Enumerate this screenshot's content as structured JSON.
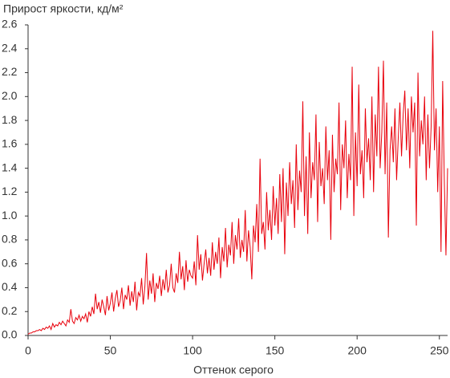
{
  "chart_data": {
    "type": "line",
    "title": "Прирост яркости, кд/м²",
    "x_label": "Оттенок серого",
    "color": "#e8000b",
    "x": [
      0,
      1,
      2,
      3,
      4,
      5,
      6,
      7,
      8,
      9,
      10,
      11,
      12,
      13,
      14,
      15,
      16,
      17,
      18,
      19,
      20,
      21,
      22,
      23,
      24,
      25,
      26,
      27,
      28,
      29,
      30,
      31,
      32,
      33,
      34,
      35,
      36,
      37,
      38,
      39,
      40,
      41,
      42,
      43,
      44,
      45,
      46,
      47,
      48,
      49,
      50,
      51,
      52,
      53,
      54,
      55,
      56,
      57,
      58,
      59,
      60,
      61,
      62,
      63,
      64,
      65,
      66,
      67,
      68,
      69,
      70,
      71,
      72,
      73,
      74,
      75,
      76,
      77,
      78,
      79,
      80,
      81,
      82,
      83,
      84,
      85,
      86,
      87,
      88,
      89,
      90,
      91,
      92,
      93,
      94,
      95,
      96,
      97,
      98,
      99,
      100,
      101,
      102,
      103,
      104,
      105,
      106,
      107,
      108,
      109,
      110,
      111,
      112,
      113,
      114,
      115,
      116,
      117,
      118,
      119,
      120,
      121,
      122,
      123,
      124,
      125,
      126,
      127,
      128,
      129,
      130,
      131,
      132,
      133,
      134,
      135,
      136,
      137,
      138,
      139,
      140,
      141,
      142,
      143,
      144,
      145,
      146,
      147,
      148,
      149,
      150,
      151,
      152,
      153,
      154,
      155,
      156,
      157,
      158,
      159,
      160,
      161,
      162,
      163,
      164,
      165,
      166,
      167,
      168,
      169,
      170,
      171,
      172,
      173,
      174,
      175,
      176,
      177,
      178,
      179,
      180,
      181,
      182,
      183,
      184,
      185,
      186,
      187,
      188,
      189,
      190,
      191,
      192,
      193,
      194,
      195,
      196,
      197,
      198,
      199,
      200,
      201,
      202,
      203,
      204,
      205,
      206,
      207,
      208,
      209,
      210,
      211,
      212,
      213,
      214,
      215,
      216,
      217,
      218,
      219,
      220,
      221,
      222,
      223,
      224,
      225,
      226,
      227,
      228,
      229,
      230,
      231,
      232,
      233,
      234,
      235,
      236,
      237,
      238,
      239,
      240,
      241,
      242,
      243,
      244,
      245,
      246,
      247,
      248,
      249,
      250,
      251,
      252,
      253,
      254,
      255
    ],
    "values": [
      0.01,
      0.02,
      0.02,
      0.03,
      0.03,
      0.04,
      0.04,
      0.05,
      0.04,
      0.06,
      0.05,
      0.07,
      0.06,
      0.08,
      0.05,
      0.1,
      0.07,
      0.09,
      0.08,
      0.11,
      0.09,
      0.12,
      0.1,
      0.08,
      0.13,
      0.11,
      0.22,
      0.12,
      0.1,
      0.15,
      0.13,
      0.17,
      0.12,
      0.16,
      0.14,
      0.18,
      0.11,
      0.2,
      0.16,
      0.24,
      0.18,
      0.35,
      0.22,
      0.28,
      0.19,
      0.3,
      0.24,
      0.17,
      0.33,
      0.21,
      0.27,
      0.36,
      0.2,
      0.31,
      0.38,
      0.24,
      0.29,
      0.4,
      0.22,
      0.34,
      0.3,
      0.42,
      0.25,
      0.37,
      0.28,
      0.45,
      0.21,
      0.36,
      0.33,
      0.48,
      0.26,
      0.41,
      0.69,
      0.3,
      0.46,
      0.35,
      0.52,
      0.28,
      0.44,
      0.39,
      0.5,
      0.33,
      0.47,
      0.38,
      0.55,
      0.36,
      0.42,
      0.6,
      0.4,
      0.36,
      0.52,
      0.44,
      0.7,
      0.47,
      0.58,
      0.38,
      0.63,
      0.45,
      0.55,
      0.5,
      0.48,
      0.62,
      0.42,
      0.84,
      0.55,
      0.68,
      0.46,
      0.6,
      0.72,
      0.52,
      0.65,
      0.5,
      0.78,
      0.55,
      0.7,
      0.6,
      0.82,
      0.48,
      0.74,
      0.62,
      0.9,
      0.57,
      0.76,
      0.67,
      0.95,
      0.6,
      0.84,
      0.72,
      0.98,
      0.65,
      0.8,
      0.7,
      1.05,
      0.62,
      0.88,
      0.74,
      0.47,
      0.92,
      0.78,
      1.1,
      0.7,
      1.48,
      0.85,
      0.95,
      0.72,
      1.2,
      0.88,
      1.05,
      0.8,
      1.25,
      0.92,
      1.15,
      0.85,
      1.35,
      0.95,
      1.4,
      0.68,
      1.28,
      1.0,
      1.45,
      1.1,
      1.3,
      0.9,
      1.6,
      1.05,
      1.38,
      1.2,
      1.96,
      1.0,
      1.5,
      0.85,
      1.7,
      1.15,
      1.45,
      1.3,
      1.85,
      0.95,
      1.62,
      1.25,
      1.4,
      1.1,
      1.75,
      1.3,
      1.55,
      0.8,
      1.68,
      1.2,
      1.48,
      1.35,
      1.95,
      1.05,
      1.6,
      1.4,
      1.8,
      1.15,
      1.52,
      1.3,
      2.25,
      1.0,
      1.7,
      1.25,
      2.1,
      1.35,
      1.55,
      1.15,
      1.9,
      1.45,
      1.65,
      1.3,
      2.0,
      1.2,
      1.85,
      1.5,
      2.25,
      1.4,
      1.7,
      2.3,
      1.35,
      1.95,
      0.82,
      1.55,
      1.75,
      1.45,
      1.9,
      1.3,
      1.65,
      1.95,
      1.5,
      1.85,
      2.05,
      1.55,
      1.9,
      1.4,
      2.0,
      1.7,
      1.95,
      0.92,
      2.2,
      1.5,
      1.8,
      1.6,
      2.0,
      1.3,
      1.85,
      1.4,
      1.75,
      2.55,
      1.55,
      1.9,
      1.2,
      1.75,
      0.7,
      2.13,
      1.3,
      0.67,
      1.4
    ],
    "xlim": [
      0,
      255
    ],
    "ylim": [
      0,
      2.6
    ],
    "xticks": [
      0,
      50,
      100,
      150,
      200,
      250
    ],
    "yticks": [
      {
        "value": 0,
        "label": "0.0"
      },
      {
        "value": 0.2,
        "label": "0.2"
      },
      {
        "value": 0.4,
        "label": "0.4"
      },
      {
        "value": 0.6,
        "label": "0.6"
      },
      {
        "value": 0.8,
        "label": "0.8"
      },
      {
        "value": 1,
        "label": "1.0"
      },
      {
        "value": 1.2,
        "label": "1.2"
      },
      {
        "value": 1.4,
        "label": "1.4"
      },
      {
        "value": 1.6,
        "label": "1.6"
      },
      {
        "value": 1.8,
        "label": "1.8"
      },
      {
        "value": 2,
        "label": "2.0"
      },
      {
        "value": 2.2,
        "label": "2.2"
      },
      {
        "value": 2.4,
        "label": "2.4"
      },
      {
        "value": 2.6,
        "label": "2.6"
      }
    ]
  }
}
